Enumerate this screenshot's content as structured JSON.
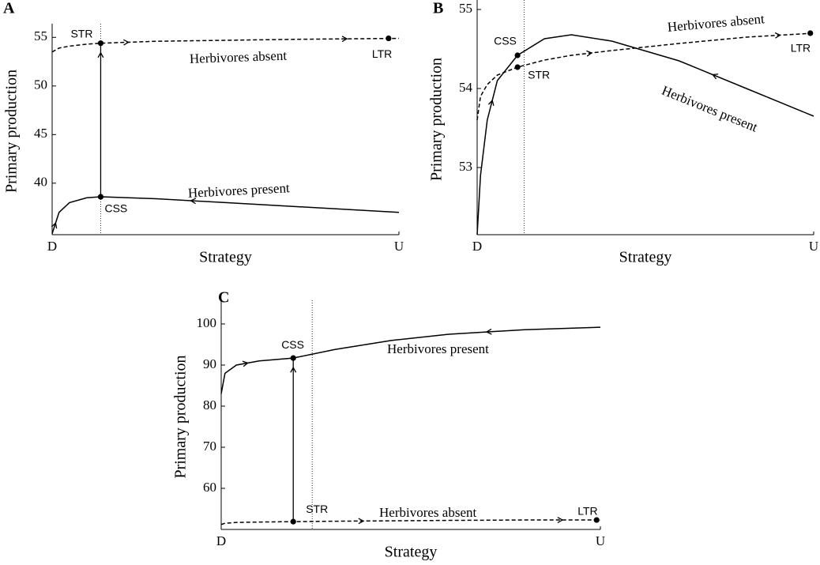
{
  "chart_data": [
    {
      "type": "line",
      "panel": "A",
      "xlabel": "Strategy",
      "ylabel": "Primary production",
      "x": [
        0,
        0.02,
        0.05,
        0.1,
        0.14,
        0.3,
        0.5,
        0.7,
        1.0
      ],
      "xlim": [
        0,
        1
      ],
      "xticks": [
        {
          "value": 0,
          "label": "D"
        },
        {
          "value": 1,
          "label": "U"
        }
      ],
      "ylim": [
        34.7,
        56
      ],
      "yticks": [
        40,
        45,
        50,
        55
      ],
      "series": [
        {
          "name": "Herbivores absent",
          "color": "#000000",
          "style": "dashed",
          "values": [
            53.5,
            53.9,
            54.1,
            54.3,
            54.4,
            54.6,
            54.7,
            54.8,
            54.9
          ]
        },
        {
          "name": "Herbivores present",
          "color": "#000000",
          "style": "solid",
          "values": [
            34.8,
            37.0,
            38.0,
            38.5,
            38.6,
            38.4,
            38.0,
            37.6,
            37.0
          ]
        }
      ],
      "annotations": [
        {
          "text": "STR",
          "x": 0.14,
          "y": 54.4
        },
        {
          "text": "CSS",
          "x": 0.14,
          "y": 38.6
        },
        {
          "text": "LTR",
          "x": 0.97,
          "y": 54.9
        }
      ],
      "vline": 0.14
    },
    {
      "type": "line",
      "panel": "B",
      "xlabel": "Strategy",
      "ylabel": "Primary production",
      "x": [
        0,
        0.01,
        0.03,
        0.06,
        0.12,
        0.2,
        0.28,
        0.4,
        0.6,
        0.8,
        1.0
      ],
      "xlim": [
        0,
        1
      ],
      "xticks": [
        {
          "value": 0,
          "label": "D"
        },
        {
          "value": 1,
          "label": "U"
        }
      ],
      "ylim": [
        52.15,
        55.07
      ],
      "yticks": [
        53,
        54,
        55
      ],
      "series": [
        {
          "name": "Herbivores absent",
          "color": "#000000",
          "style": "dashed",
          "values": [
            53.6,
            53.9,
            54.05,
            54.17,
            54.27,
            54.36,
            54.42,
            54.48,
            54.57,
            54.65,
            54.7
          ]
        },
        {
          "name": "Herbivores present",
          "color": "#000000",
          "style": "solid",
          "values": [
            52.15,
            52.9,
            53.6,
            54.1,
            54.42,
            54.63,
            54.68,
            54.6,
            54.35,
            54.0,
            53.65
          ]
        }
      ],
      "annotations": [
        {
          "text": "CSS",
          "x": 0.12,
          "y": 54.42
        },
        {
          "text": "STR",
          "x": 0.12,
          "y": 54.27
        },
        {
          "text": "LTR",
          "x": 0.99,
          "y": 54.7
        }
      ],
      "vline": 0.14
    },
    {
      "type": "line",
      "panel": "C",
      "xlabel": "Strategy",
      "ylabel": "Primary production",
      "x": [
        0,
        0.01,
        0.04,
        0.1,
        0.19,
        0.3,
        0.45,
        0.6,
        0.8,
        1.0
      ],
      "xlim": [
        0,
        1
      ],
      "xticks": [
        {
          "value": 0,
          "label": "D"
        },
        {
          "value": 1,
          "label": "U"
        }
      ],
      "ylim": [
        50,
        104.8
      ],
      "yticks": [
        60,
        70,
        80,
        90,
        100
      ],
      "series": [
        {
          "name": "Herbivores absent",
          "color": "#000000",
          "style": "dashed",
          "values": [
            51.2,
            51.5,
            51.7,
            51.8,
            51.9,
            52.0,
            52.1,
            52.2,
            52.3,
            52.3
          ]
        },
        {
          "name": "Herbivores present",
          "color": "#000000",
          "style": "solid",
          "values": [
            83,
            88,
            90,
            91,
            91.7,
            93.8,
            96,
            97.5,
            98.6,
            99.2
          ]
        }
      ],
      "annotations": [
        {
          "text": "CSS",
          "x": 0.19,
          "y": 91.7
        },
        {
          "text": "STR",
          "x": 0.19,
          "y": 51.9
        },
        {
          "text": "LTR",
          "x": 0.99,
          "y": 52.3
        }
      ],
      "vline": 0.24
    }
  ]
}
